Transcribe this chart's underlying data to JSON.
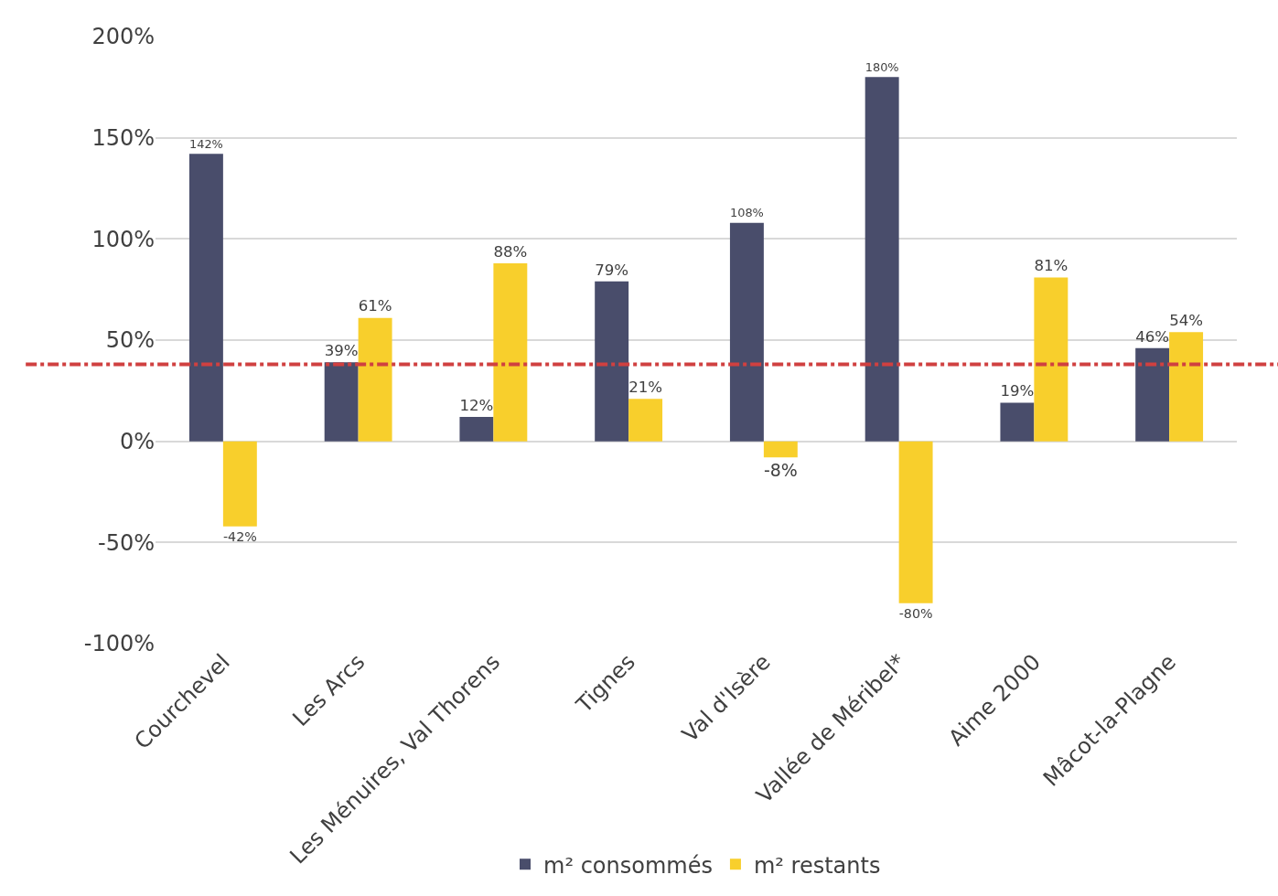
{
  "chart_data": {
    "type": "bar",
    "categories": [
      "Courchevel",
      "Les Arcs",
      "Les Ménuires, Val Thorens",
      "Tignes",
      "Val d'Isère",
      "Vallée de Méribel*",
      "Aime 2000",
      "Mâcot-la-Plagne"
    ],
    "series": [
      {
        "name": "m² consommés",
        "color": "#494d6b",
        "values": [
          142,
          39,
          12,
          79,
          108,
          180,
          19,
          46
        ],
        "value_labels": [
          "142%",
          "39%",
          "12%",
          "79%",
          "108%",
          "180%",
          "19%",
          "46%"
        ]
      },
      {
        "name": "m² restants",
        "color": "#f8cf2c",
        "values": [
          -42,
          61,
          88,
          21,
          -8,
          -80,
          81,
          54
        ],
        "value_labels": [
          "-42%",
          "61%",
          "88%",
          "21%",
          "-8%",
          "-80%",
          "81%",
          "54%"
        ]
      }
    ],
    "ylim": [
      -100,
      200
    ],
    "yticks": [
      {
        "value": -100,
        "label": "-100%"
      },
      {
        "value": -50,
        "label": "-50%"
      },
      {
        "value": 0,
        "label": "0%"
      },
      {
        "value": 50,
        "label": "50%"
      },
      {
        "value": 100,
        "label": "100%"
      },
      {
        "value": 150,
        "label": "150%"
      },
      {
        "value": 200,
        "label": "200%"
      }
    ],
    "grid": "y",
    "legend": "bottom",
    "ref_lines": [
      {
        "axis": "y",
        "value": 38,
        "color": "#d04040",
        "line_style": "dashed"
      }
    ]
  }
}
